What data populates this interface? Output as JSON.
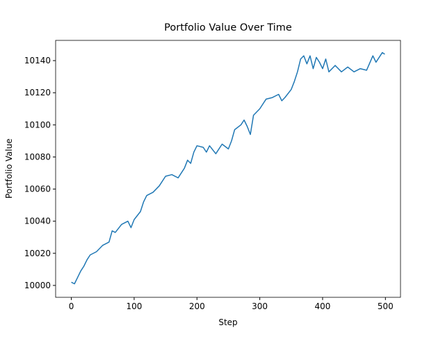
{
  "chart_data": {
    "type": "line",
    "title": "Portfolio Value Over Time",
    "x_label": "Step",
    "y_label": "Portfolio Value",
    "x": [
      0,
      5,
      10,
      15,
      20,
      25,
      30,
      40,
      50,
      60,
      65,
      70,
      80,
      90,
      95,
      100,
      110,
      115,
      120,
      130,
      140,
      150,
      160,
      170,
      180,
      185,
      190,
      195,
      200,
      210,
      215,
      220,
      230,
      240,
      250,
      255,
      260,
      270,
      275,
      280,
      285,
      290,
      300,
      310,
      320,
      330,
      335,
      340,
      350,
      355,
      360,
      365,
      370,
      375,
      380,
      385,
      390,
      395,
      400,
      405,
      410,
      420,
      430,
      440,
      450,
      460,
      470,
      480,
      485,
      490,
      495,
      499
    ],
    "series": [
      {
        "name": "Portfolio Value",
        "color": "#1f77b4",
        "values": [
          10002,
          10001,
          10005,
          10009,
          10012,
          10016,
          10019,
          10021,
          10025,
          10027,
          10034,
          10033,
          10038,
          10040,
          10036,
          10041,
          10046,
          10052,
          10056,
          10058,
          10062,
          10068,
          10069,
          10067,
          10073,
          10078,
          10076,
          10083,
          10087,
          10086,
          10083,
          10087,
          10082,
          10088,
          10085,
          10090,
          10097,
          10100,
          10103,
          10099,
          10094,
          10106,
          10110,
          10116,
          10117,
          10119,
          10115,
          10117,
          10122,
          10127,
          10133,
          10141,
          10143,
          10138,
          10143,
          10135,
          10142,
          10139,
          10135,
          10141,
          10133,
          10137,
          10133,
          10136,
          10133,
          10135,
          10134,
          10143,
          10139,
          10142,
          10145,
          10144
        ]
      }
    ],
    "xlim": [
      -25,
      524
    ],
    "ylim": [
      9992.6,
      10152.6
    ],
    "xticks": [
      0,
      100,
      200,
      300,
      400,
      500
    ],
    "yticks": [
      10000,
      10020,
      10040,
      10060,
      10080,
      10100,
      10120,
      10140
    ]
  }
}
